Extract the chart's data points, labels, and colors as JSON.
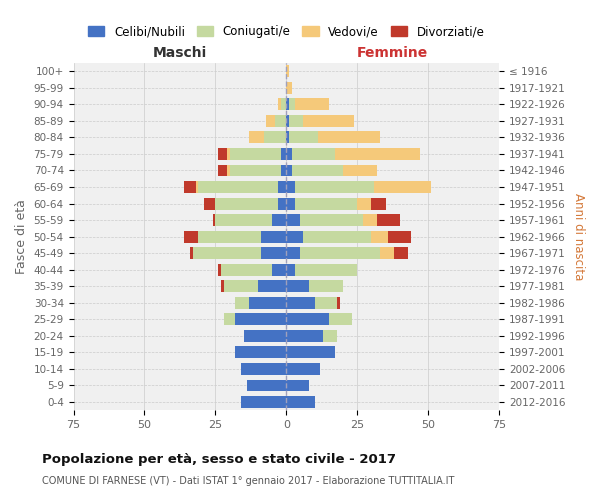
{
  "age_groups": [
    "0-4",
    "5-9",
    "10-14",
    "15-19",
    "20-24",
    "25-29",
    "30-34",
    "35-39",
    "40-44",
    "45-49",
    "50-54",
    "55-59",
    "60-64",
    "65-69",
    "70-74",
    "75-79",
    "80-84",
    "85-89",
    "90-94",
    "95-99",
    "100+"
  ],
  "birth_years": [
    "2012-2016",
    "2007-2011",
    "2002-2006",
    "1997-2001",
    "1992-1996",
    "1987-1991",
    "1982-1986",
    "1977-1981",
    "1972-1976",
    "1967-1971",
    "1962-1966",
    "1957-1961",
    "1952-1956",
    "1947-1951",
    "1942-1946",
    "1937-1941",
    "1932-1936",
    "1927-1931",
    "1922-1926",
    "1917-1921",
    "≤ 1916"
  ],
  "male_celibi": [
    16,
    14,
    16,
    18,
    15,
    18,
    13,
    10,
    5,
    9,
    9,
    5,
    3,
    3,
    2,
    2,
    0,
    0,
    0,
    0,
    0
  ],
  "male_coniugati": [
    0,
    0,
    0,
    0,
    0,
    4,
    5,
    12,
    18,
    24,
    22,
    20,
    22,
    28,
    18,
    18,
    8,
    4,
    2,
    0,
    0
  ],
  "male_vedovi": [
    0,
    0,
    0,
    0,
    0,
    0,
    0,
    0,
    0,
    0,
    0,
    0,
    0,
    1,
    1,
    1,
    5,
    3,
    1,
    0,
    0
  ],
  "male_divorziati": [
    0,
    0,
    0,
    0,
    0,
    0,
    0,
    1,
    1,
    1,
    5,
    1,
    4,
    4,
    3,
    3,
    0,
    0,
    0,
    0,
    0
  ],
  "female_nubili": [
    10,
    8,
    12,
    17,
    13,
    15,
    10,
    8,
    3,
    5,
    6,
    5,
    3,
    3,
    2,
    2,
    1,
    1,
    1,
    0,
    0
  ],
  "female_coniugate": [
    0,
    0,
    0,
    0,
    5,
    8,
    8,
    12,
    22,
    28,
    24,
    22,
    22,
    28,
    18,
    15,
    10,
    5,
    2,
    0,
    0
  ],
  "female_vedove": [
    0,
    0,
    0,
    0,
    0,
    0,
    0,
    0,
    0,
    5,
    6,
    5,
    5,
    20,
    12,
    30,
    22,
    18,
    12,
    2,
    1
  ],
  "female_divorziate": [
    0,
    0,
    0,
    0,
    0,
    0,
    1,
    0,
    0,
    5,
    8,
    8,
    5,
    0,
    0,
    0,
    0,
    0,
    0,
    0,
    0
  ],
  "color_celibi": "#4472C4",
  "color_coniugati": "#C5D9A0",
  "color_vedovi": "#F5C97A",
  "color_divorziati": "#C0392B",
  "xlim": 75,
  "title": "Popolazione per età, sesso e stato civile - 2017",
  "subtitle": "COMUNE DI FARNESE (VT) - Dati ISTAT 1° gennaio 2017 - Elaborazione TUTTITALIA.IT",
  "legend_labels": [
    "Celibi/Nubili",
    "Coniugati/e",
    "Vedovi/e",
    "Divorziati/e"
  ],
  "label_maschi": "Maschi",
  "label_femmine": "Femmine",
  "ylabel_left": "Fasce di età",
  "ylabel_right": "Anni di nascita",
  "bg_color": "#ffffff",
  "plot_bg": "#f0f0f0",
  "grid_color": "#cccccc"
}
